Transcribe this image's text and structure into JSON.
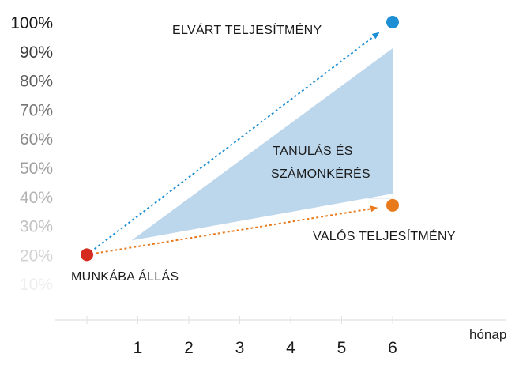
{
  "chart_data": {
    "type": "line",
    "x_ticks": [
      "1",
      "2",
      "3",
      "4",
      "5",
      "6"
    ],
    "x_unit": "hónap",
    "y_ticks": [
      "10%",
      "20%",
      "30%",
      "40%",
      "50%",
      "60%",
      "70%",
      "80%",
      "90%",
      "100%"
    ],
    "ylim": [
      10,
      100
    ],
    "xlim": [
      0,
      6
    ],
    "grid": false,
    "points": {
      "start": {
        "x": 0,
        "y": 20,
        "label": "MUNKÁBA ÁLLÁS",
        "color": "#d52b1e"
      },
      "expected": {
        "x": 6,
        "y": 100,
        "label": "ELVÁRT TELJESÍTMÉNY",
        "color": "#1e8fd4"
      },
      "actual": {
        "x": 6,
        "y": 37,
        "label": "VALÓS TELJESÍTMÉNY",
        "color": "#e87a1c"
      }
    },
    "gap_area": {
      "label_lines": [
        "TANULÁS ÉS",
        "SZÁMONKÉRÉS"
      ],
      "color": "#bcd6ec",
      "x_start": 1,
      "top_at_start": 26,
      "top_at_end": 91,
      "bottom_at_end": 41
    },
    "tick_label_colors": [
      "#eeeeee",
      "#d2d2d2",
      "#c2c2c2",
      "#b4b4b4",
      "#a0a0a0",
      "#8c8c8c",
      "#767676",
      "#5e5e5e",
      "#3e3e3e",
      "#1a1a1a"
    ]
  }
}
